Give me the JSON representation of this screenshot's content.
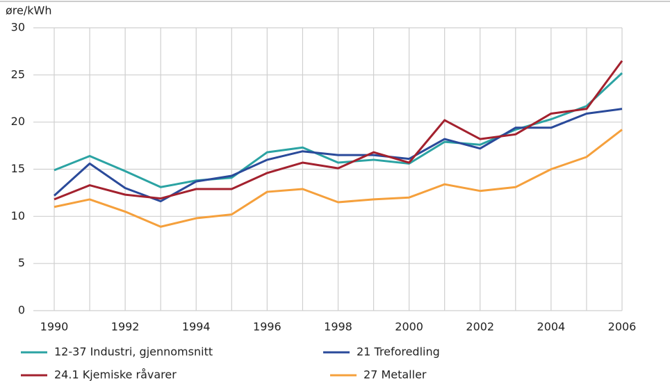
{
  "chart_data": {
    "type": "line",
    "y_label": "øre/kWh",
    "x": [
      1990,
      1991,
      1992,
      1993,
      1994,
      1995,
      1996,
      1997,
      1998,
      1999,
      2000,
      2001,
      2002,
      2003,
      2004,
      2005,
      2006
    ],
    "xlim": [
      1990,
      2006
    ],
    "xticks": [
      1990,
      1992,
      1994,
      1996,
      1998,
      2000,
      2002,
      2004,
      2006
    ],
    "ylim": [
      0,
      30
    ],
    "yticks": [
      0,
      5,
      10,
      15,
      20,
      25,
      30
    ],
    "grid": true,
    "series": [
      {
        "name": "12-37 Industri, gjennomsnitt",
        "color": "#2ba3a3",
        "values": [
          14.9,
          16.4,
          14.8,
          13.1,
          13.8,
          14.1,
          16.8,
          17.3,
          15.7,
          16.0,
          15.6,
          17.9,
          17.6,
          19.2,
          20.3,
          21.7,
          25.2
        ]
      },
      {
        "name": "21 Treforedling",
        "color": "#2a4a9a",
        "values": [
          12.2,
          15.6,
          13.0,
          11.6,
          13.7,
          14.3,
          16.0,
          16.9,
          16.5,
          16.5,
          16.1,
          18.2,
          17.2,
          19.4,
          19.4,
          20.9,
          21.4
        ]
      },
      {
        "name": "24.1 Kjemiske råvarer",
        "color": "#a3212e",
        "values": [
          11.8,
          13.3,
          12.3,
          11.9,
          12.9,
          12.9,
          14.6,
          15.7,
          15.1,
          16.8,
          15.7,
          20.2,
          18.2,
          18.7,
          20.9,
          21.4,
          26.5
        ]
      },
      {
        "name": "27 Metaller",
        "color": "#f5a03c",
        "values": [
          11.0,
          11.8,
          10.5,
          8.9,
          9.8,
          10.2,
          12.6,
          12.9,
          11.5,
          11.8,
          12.0,
          13.4,
          12.7,
          13.1,
          15.0,
          16.3,
          19.2
        ]
      }
    ]
  }
}
